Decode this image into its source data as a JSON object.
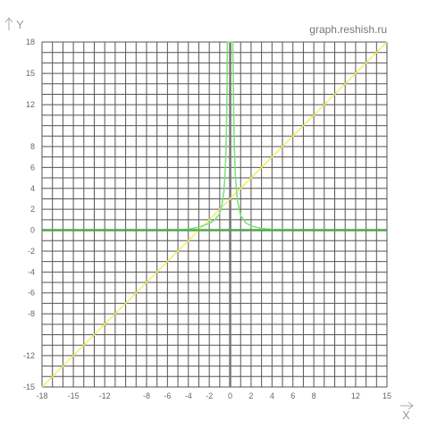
{
  "site": {
    "watermark": "graph.reshish.ru"
  },
  "chart_data": {
    "type": "line",
    "title": "",
    "xlabel": "X",
    "ylabel": "Y",
    "xlim": [
      -18,
      15
    ],
    "ylim": [
      -15,
      18
    ],
    "grid": true,
    "x_tick_labels": [
      "-18",
      "-15",
      "-12",
      "-8",
      "-6",
      "-4",
      "-2",
      "0",
      "2",
      "4",
      "6",
      "8",
      "12",
      "15"
    ],
    "y_tick_labels": [
      "18",
      "15",
      "12",
      "8",
      "6",
      "4",
      "2",
      "0",
      "-2",
      "-4",
      "-6",
      "-8",
      "-12",
      "-15"
    ],
    "colors": {
      "grid": "#555555",
      "axis": "#777777",
      "line_series": "#f0f060",
      "curve_series": "#7ae07a",
      "flat_series": "#44b044"
    },
    "series": [
      {
        "kind": "line",
        "points": [
          [
            -18,
            -15
          ],
          [
            -16,
            -13
          ],
          [
            -12,
            -9
          ],
          [
            -8,
            -5
          ],
          [
            -4,
            -1
          ],
          [
            -2,
            1
          ],
          [
            0,
            3
          ],
          [
            2,
            5
          ],
          [
            4,
            7
          ],
          [
            8,
            11
          ],
          [
            12,
            15
          ],
          [
            15,
            18
          ]
        ]
      },
      {
        "kind": "curve",
        "points": [
          [
            -18,
            0.0
          ],
          [
            -12,
            0.0
          ],
          [
            -8,
            0.01
          ],
          [
            -6,
            0.03
          ],
          [
            -4,
            0.1
          ],
          [
            -3,
            0.3
          ],
          [
            -2,
            0.65
          ],
          [
            -1.5,
            0.95
          ],
          [
            -1,
            1.6
          ],
          [
            -0.8,
            2.3
          ],
          [
            -0.6,
            3.7
          ],
          [
            -0.5,
            5.1
          ],
          [
            -0.4,
            7.5
          ],
          [
            -0.35,
            10
          ],
          [
            -0.3,
            13.5
          ],
          [
            -0.27,
            18
          ],
          [
            0.25,
            18
          ],
          [
            0.3,
            14
          ],
          [
            0.35,
            10.5
          ],
          [
            0.4,
            8
          ],
          [
            0.5,
            5.1
          ],
          [
            0.7,
            2.8
          ],
          [
            1,
            1.4
          ],
          [
            1.5,
            0.7
          ],
          [
            2,
            0.4
          ],
          [
            3,
            0.17
          ],
          [
            4,
            0.08
          ],
          [
            6,
            0.02
          ],
          [
            8,
            0.01
          ],
          [
            12,
            0.0
          ],
          [
            15,
            0.0
          ]
        ]
      },
      {
        "kind": "flat",
        "points": [
          [
            -18,
            0
          ],
          [
            15,
            0
          ]
        ]
      }
    ]
  }
}
